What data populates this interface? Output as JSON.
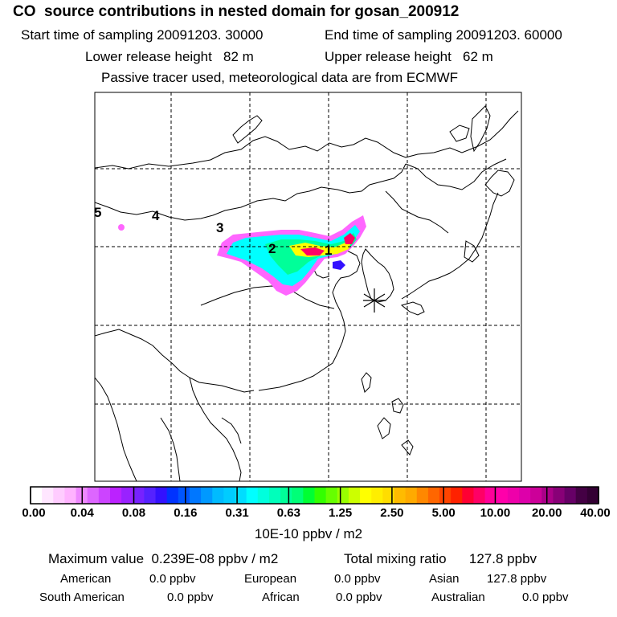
{
  "header": {
    "title": "CO  source contributions in nested domain for gosan_200912",
    "start_time": "Start time of sampling 20091203. 30000",
    "end_time": "End time of sampling 20091203. 60000",
    "lower_height": "Lower release height   82 m",
    "upper_height": "Upper release height   62 m",
    "tracer_note": "Passive tracer used, meteorological data are from ECMWF"
  },
  "map": {
    "region": "East Asia",
    "trajectory_labels": [
      "1",
      "2",
      "3",
      "4",
      "5"
    ],
    "receptor_marker": "asterisk",
    "plume_colors": {
      "low": "#ff66ff",
      "mid_low": "#00ffff",
      "mid": "#00ff99",
      "high": "#ffff00",
      "peak": "#ff0066"
    }
  },
  "colorbar": {
    "ticks": [
      "0.00",
      "0.04",
      "0.08",
      "0.16",
      "0.31",
      "0.63",
      "1.25",
      "2.50",
      "5.00",
      "10.00",
      "20.00",
      "40.00"
    ],
    "colors": [
      "#ffffff",
      "#ffe6ff",
      "#ffccff",
      "#ffb3ff",
      "#ee88ff",
      "#dd66ff",
      "#cc44ff",
      "#bb22ff",
      "#9922ff",
      "#7722ff",
      "#5522ff",
      "#3311ff",
      "#0033ff",
      "#0055ff",
      "#0077ff",
      "#0099ff",
      "#00bbff",
      "#00ccff",
      "#00ddff",
      "#00ffff",
      "#00ffdd",
      "#00ffbb",
      "#00ff99",
      "#00ff77",
      "#00ff33",
      "#33ff00",
      "#66ff00",
      "#99ff00",
      "#ccff00",
      "#ffff00",
      "#ffee00",
      "#ffdd00",
      "#ffbb00",
      "#ffaa00",
      "#ff8800",
      "#ff6600",
      "#ff4400",
      "#ff2200",
      "#ff0033",
      "#ff0066",
      "#ff0099",
      "#ff00aa",
      "#ee00aa",
      "#dd00aa",
      "#cc0099",
      "#aa0088",
      "#880077",
      "#660066",
      "#440044",
      "#330033"
    ],
    "unit": "10E-10 ppbv / m2"
  },
  "stats": {
    "max_value": "Maximum value  0.239E-08 ppbv / m2",
    "total_mixing": "Total mixing ratio      127.8 ppbv",
    "american_label": "American",
    "american_value": "0.0 ppbv",
    "european_label": "European",
    "european_value": "0.0 ppbv",
    "asian_label": "Asian",
    "asian_value": "127.8 ppbv",
    "south_american_label": "South American",
    "south_american_value": "0.0 ppbv",
    "african_label": "African",
    "african_value": "0.0 ppbv",
    "australian_label": "Australian",
    "australian_value": "0.0 ppbv"
  }
}
